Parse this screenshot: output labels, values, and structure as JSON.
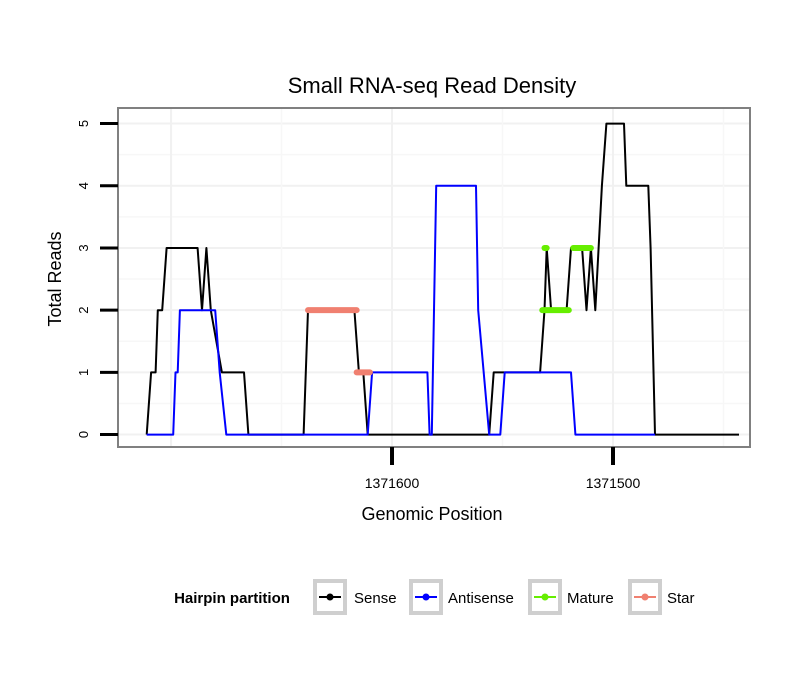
{
  "chart_data": {
    "type": "line",
    "title": "Small RNA-seq Read Density",
    "xlabel": "Genomic Position",
    "ylabel": "Total Reads",
    "xlim": [
      1371724,
      1371438
    ],
    "ylim": [
      -0.2,
      5.25
    ],
    "x_reversed": true,
    "x_ticks": [
      {
        "value": 1371600,
        "label": "1371600"
      },
      {
        "value": 1371500,
        "label": "1371500"
      }
    ],
    "y_ticks": [
      {
        "value": 0,
        "label": "0"
      },
      {
        "value": 1,
        "label": "1"
      },
      {
        "value": 2,
        "label": "2"
      },
      {
        "value": 3,
        "label": "3"
      },
      {
        "value": 4,
        "label": "4"
      },
      {
        "value": 5,
        "label": "5"
      }
    ],
    "grid": true,
    "legend": {
      "title": "Hairpin partition",
      "position": "bottom",
      "entries": [
        {
          "name": "Sense",
          "color": "#000000"
        },
        {
          "name": "Antisense",
          "color": "#0000ff"
        },
        {
          "name": "Mature",
          "color": "#66ee00"
        },
        {
          "name": "Star",
          "color": "#f08070"
        }
      ]
    },
    "series": [
      {
        "name": "Sense",
        "color": "#000000",
        "width": 2,
        "points": [
          [
            1371711,
            0
          ],
          [
            1371709,
            1
          ],
          [
            1371707,
            1
          ],
          [
            1371706,
            2
          ],
          [
            1371704,
            2
          ],
          [
            1371702,
            3
          ],
          [
            1371688,
            3
          ],
          [
            1371686,
            2
          ],
          [
            1371684,
            3
          ],
          [
            1371682,
            2
          ],
          [
            1371677,
            1
          ],
          [
            1371667,
            1
          ],
          [
            1371665,
            0
          ],
          [
            1371640,
            0
          ],
          [
            1371638,
            2
          ],
          [
            1371617,
            2
          ],
          [
            1371615,
            1
          ],
          [
            1371613,
            1
          ],
          [
            1371611,
            0
          ],
          [
            1371595,
            0
          ],
          [
            1371556,
            0
          ],
          [
            1371554,
            1
          ],
          [
            1371533,
            1
          ],
          [
            1371531,
            2
          ],
          [
            1371530,
            3
          ],
          [
            1371528,
            2
          ],
          [
            1371521,
            2
          ],
          [
            1371519,
            3
          ],
          [
            1371514,
            3
          ],
          [
            1371512,
            2
          ],
          [
            1371510,
            3
          ],
          [
            1371508,
            2
          ],
          [
            1371505,
            4
          ],
          [
            1371503,
            5
          ],
          [
            1371495,
            5
          ],
          [
            1371494,
            4
          ],
          [
            1371484,
            4
          ],
          [
            1371483,
            3
          ],
          [
            1371481,
            0
          ],
          [
            1371443,
            0
          ]
        ]
      },
      {
        "name": "Antisense",
        "color": "#0000ff",
        "width": 2,
        "points": [
          [
            1371711,
            0
          ],
          [
            1371699,
            0
          ],
          [
            1371698,
            1
          ],
          [
            1371697,
            1
          ],
          [
            1371696,
            2
          ],
          [
            1371680,
            2
          ],
          [
            1371678,
            1
          ],
          [
            1371675,
            0
          ],
          [
            1371611,
            0
          ],
          [
            1371609,
            1
          ],
          [
            1371584,
            1
          ],
          [
            1371583,
            0
          ],
          [
            1371582,
            0
          ],
          [
            1371580,
            4
          ],
          [
            1371562,
            4
          ],
          [
            1371561,
            2
          ],
          [
            1371556,
            0
          ],
          [
            1371551,
            0
          ],
          [
            1371549,
            1
          ],
          [
            1371535,
            1
          ],
          [
            1371534,
            1
          ],
          [
            1371519,
            1
          ],
          [
            1371517,
            0
          ],
          [
            1371481,
            0
          ]
        ]
      },
      {
        "name": "Mature",
        "color": "#66ee00",
        "width": 6,
        "segments": [
          [
            [
              1371532,
              2
            ],
            [
              1371520,
              2
            ]
          ],
          [
            [
              1371531,
              3
            ],
            [
              1371530,
              3
            ]
          ],
          [
            [
              1371518,
              3
            ],
            [
              1371510,
              3
            ]
          ]
        ]
      },
      {
        "name": "Star",
        "color": "#f08070",
        "width": 6,
        "segments": [
          [
            [
              1371638,
              2
            ],
            [
              1371616,
              2
            ]
          ],
          [
            [
              1371616,
              1
            ],
            [
              1371610,
              1
            ]
          ]
        ]
      }
    ]
  }
}
